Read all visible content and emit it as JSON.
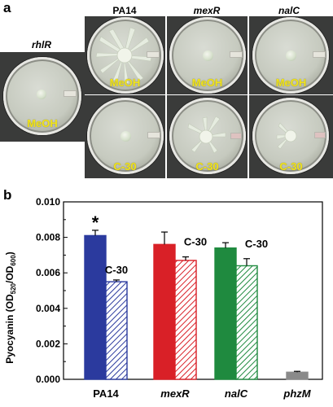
{
  "panel_a": {
    "letter": "a",
    "columns": [
      "PA14",
      "mexR",
      "nalC"
    ],
    "side_label": "rhlR",
    "row_labels": {
      "top": "MeOH",
      "bottom": "C-30"
    },
    "side_dish_label": "MeOH"
  },
  "panel_b": {
    "letter": "b",
    "ylabel": "Pyocyanin (OD",
    "ylabel_sub1": "520",
    "ylabel_mid": "/OD",
    "ylabel_sub2": "600",
    "ylabel_end": ")",
    "significance_mark": "*",
    "treatment_label": "C-30"
  },
  "chart_data": {
    "type": "bar",
    "categories": [
      "PA14",
      "mexR",
      "nalC",
      "phzM"
    ],
    "ylim": [
      0,
      0.01
    ],
    "yticks": [
      "0.000",
      "0.002",
      "0.004",
      "0.006",
      "0.008",
      "0.010"
    ],
    "series": [
      {
        "name": "MeOH",
        "values": [
          0.0081,
          0.0076,
          0.0074,
          0.0004
        ],
        "errors": [
          0.0003,
          0.0007,
          0.0003,
          5e-05
        ]
      },
      {
        "name": "C-30",
        "values": [
          0.0055,
          0.0067,
          0.0064,
          null
        ],
        "errors": [
          0.0001,
          0.0002,
          0.0004,
          null
        ]
      }
    ],
    "colors": {
      "PA14": "#2b3a9e",
      "mexR": "#d92027",
      "nalC": "#1f8a3f",
      "phzM": "#8a8a8a"
    }
  }
}
